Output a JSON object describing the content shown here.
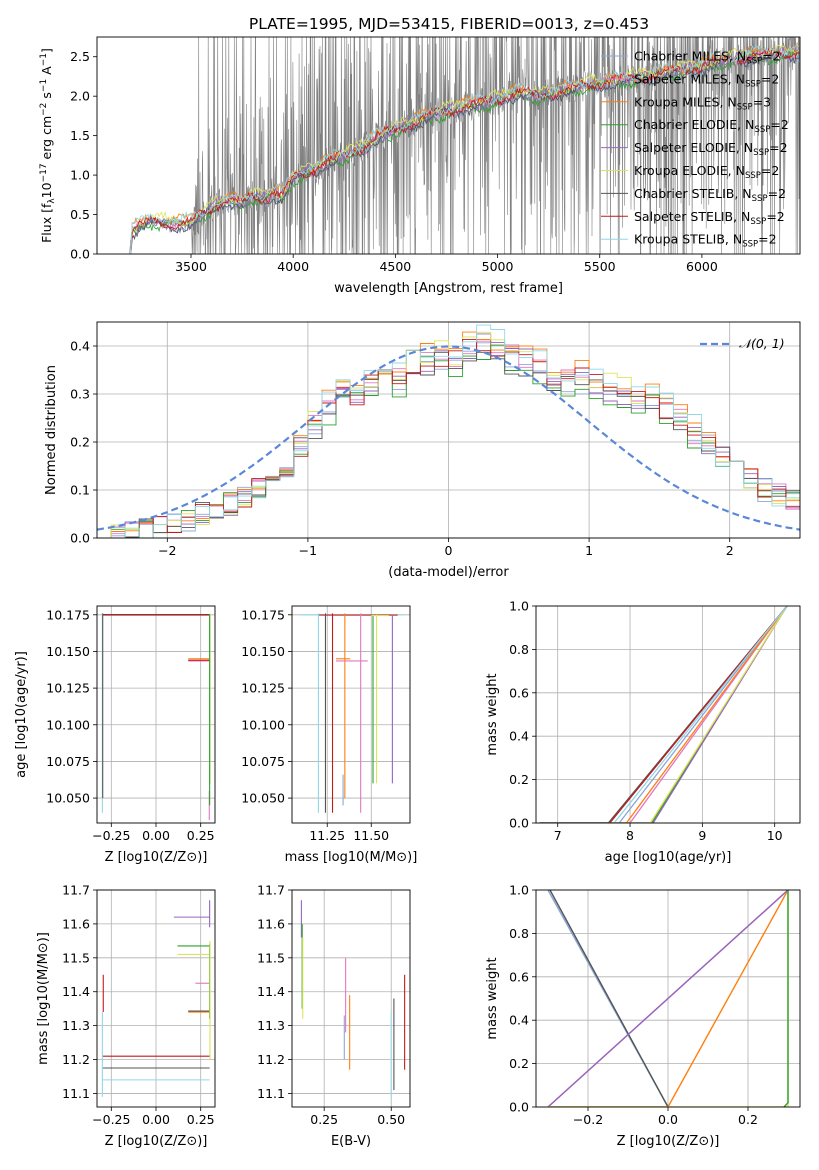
{
  "figure": {
    "title": "PLATE=1995, MJD=53415, FIBERID=0013, z=0.453"
  },
  "colors": {
    "Chabrier MILES": "#8fa5d6",
    "Salpeter MILES": "#e377c2",
    "Kroupa MILES": "#ff7f0e",
    "Chabrier ELODIE": "#2ca02c",
    "Salpeter ELODIE": "#9467bd",
    "Kroupa ELODIE": "#dde35a",
    "Chabrier STELIB": "#555555",
    "Salpeter STELIB": "#c41a1a",
    "Kroupa STELIB": "#8fd8e8",
    "data": "#808080",
    "normal": "#5b87d9"
  },
  "chart_data": [
    {
      "id": "spectrum",
      "type": "line",
      "xlabel": "wavelength [Angstrom, rest frame]",
      "ylabel": "Flux [f_λ10^-17 erg cm^-2 s^-1 A^-1]",
      "xlim": [
        3040,
        6480
      ],
      "ylim": [
        0,
        2.75
      ],
      "xticks": [
        3500,
        4000,
        4500,
        5000,
        5500,
        6000
      ],
      "yticks": [
        0.0,
        0.5,
        1.0,
        1.5,
        2.0,
        2.5
      ],
      "legend_position": "top-right",
      "legend": [
        {
          "name": "Chabrier MILES",
          "label": "Chabrier MILES, N_SSP=2"
        },
        {
          "name": "Salpeter MILES",
          "label": "Salpeter MILES, N_SSP=2"
        },
        {
          "name": "Kroupa MILES",
          "label": "Kroupa MILES, N_SSP=3"
        },
        {
          "name": "Chabrier ELODIE",
          "label": "Chabrier ELODIE, N_SSP=2"
        },
        {
          "name": "Salpeter ELODIE",
          "label": "Salpeter ELODIE, N_SSP=2"
        },
        {
          "name": "Kroupa ELODIE",
          "label": "Kroupa ELODIE, N_SSP=2"
        },
        {
          "name": "Chabrier STELIB",
          "label": "Chabrier STELIB, N_SSP=2"
        },
        {
          "name": "Salpeter STELIB",
          "label": "Salpeter STELIB, N_SSP=2"
        },
        {
          "name": "Kroupa STELIB",
          "label": "Kroupa STELIB, N_SSP=2"
        }
      ],
      "model_continuum": {
        "x": [
          3200,
          3210,
          3260,
          3300,
          3400,
          3500,
          3550,
          3600,
          3650,
          3700,
          3750,
          3800,
          3850,
          3900,
          3950,
          4000,
          4100,
          4200,
          4300,
          4400,
          4500,
          4600,
          4700,
          4800,
          4900,
          5000,
          5100,
          5200,
          5300,
          5400,
          5500,
          5600,
          5700,
          5800,
          5900,
          6000,
          6100,
          6200,
          6300,
          6400
        ],
        "y": [
          0.0,
          0.3,
          0.37,
          0.42,
          0.39,
          0.4,
          0.5,
          0.58,
          0.66,
          0.68,
          0.64,
          0.74,
          0.7,
          0.78,
          0.74,
          0.97,
          1.08,
          1.2,
          1.3,
          1.46,
          1.58,
          1.68,
          1.78,
          1.85,
          1.9,
          1.96,
          2.05,
          2.0,
          2.05,
          2.12,
          2.17,
          2.2,
          2.25,
          2.28,
          2.34,
          2.38,
          2.45,
          2.5,
          2.52,
          2.55
        ]
      },
      "data_range": {
        "x": [
          3200,
          6480
        ],
        "y": [
          0.0,
          2.75
        ]
      }
    },
    {
      "id": "residuals",
      "type": "line",
      "xlabel": "(data-model)/error",
      "ylabel": "Normed distribution",
      "xlim": [
        -2.5,
        2.5
      ],
      "ylim": [
        0,
        0.45
      ],
      "xticks": [
        -2,
        -1,
        0,
        1,
        2
      ],
      "yticks": [
        0.0,
        0.1,
        0.2,
        0.3,
        0.4
      ],
      "legend_position": "top-right",
      "legend_label": "𝒩(0, 1)",
      "bin_edges_start": -2.5,
      "bin_width": 0.1,
      "histogram_base": [
        0.0,
        0.005,
        0.01,
        0.015,
        0.02,
        0.028,
        0.035,
        0.05,
        0.06,
        0.07,
        0.085,
        0.1,
        0.12,
        0.15,
        0.19,
        0.24,
        0.27,
        0.29,
        0.3,
        0.32,
        0.34,
        0.33,
        0.36,
        0.37,
        0.38,
        0.37,
        0.39,
        0.41,
        0.4,
        0.38,
        0.37,
        0.36,
        0.34,
        0.33,
        0.33,
        0.32,
        0.31,
        0.3,
        0.29,
        0.29,
        0.27,
        0.25,
        0.22,
        0.2,
        0.17,
        0.14,
        0.12,
        0.1,
        0.09,
        0.08
      ]
    },
    {
      "id": "age-vs-Z",
      "type": "scatter",
      "xlabel": "Z [log10(Z/Z⊙)]",
      "ylabel": "age  [log10(age/yr)]",
      "xlim": [
        -0.33,
        0.33
      ],
      "ylim": [
        10.033,
        10.181
      ],
      "xticks": [
        "-0.25",
        "0.00",
        "0.25"
      ],
      "yticks": [
        "10.050",
        "10.075",
        "10.100",
        "10.125",
        "10.150",
        "10.175"
      ]
    },
    {
      "id": "age-vs-mass",
      "type": "scatter",
      "xlabel": "mass [log10(M/M⊙)]",
      "xlim": [
        11.05,
        11.72
      ],
      "ylim": [
        10.033,
        10.181
      ],
      "xticks": [
        "11.25",
        "11.50"
      ],
      "yticks": [
        "10.050",
        "10.075",
        "10.100",
        "10.125",
        "10.150",
        "10.175"
      ]
    },
    {
      "id": "cum-age",
      "type": "line",
      "xlabel": "age  [log10(age/yr)]",
      "ylabel": "mass weight",
      "xlim": [
        6.7,
        10.35
      ],
      "ylim": [
        0,
        1
      ],
      "xticks": [
        "7",
        "8",
        "9",
        "10"
      ],
      "yticks": [
        "0.0",
        "0.2",
        "0.4",
        "0.6",
        "0.8",
        "1.0"
      ]
    },
    {
      "id": "mass-vs-Z",
      "type": "scatter",
      "xlabel": "Z [log10(Z/Z⊙)]",
      "ylabel": "mass [log10(M/M⊙)]",
      "xlim": [
        -0.33,
        0.33
      ],
      "ylim": [
        11.06,
        11.7
      ],
      "xticks": [
        "-0.25",
        "0.00",
        "0.25"
      ],
      "yticks": [
        "11.1",
        "11.2",
        "11.3",
        "11.4",
        "11.5",
        "11.6",
        "11.7"
      ]
    },
    {
      "id": "mass-vs-ebv",
      "type": "scatter",
      "xlabel": "E(B-V)",
      "xlim": [
        0.13,
        0.57
      ],
      "ylim": [
        11.06,
        11.7
      ],
      "xticks": [
        "0.25",
        "0.50"
      ],
      "yticks": [
        "11.1",
        "11.2",
        "11.3",
        "11.4",
        "11.5",
        "11.6",
        "11.7"
      ]
    },
    {
      "id": "cum-Z",
      "type": "line",
      "xlabel": "Z [log10(Z/Z⊙)]",
      "ylabel": "mass weight",
      "xlim": [
        -0.33,
        0.33
      ],
      "ylim": [
        0,
        1
      ],
      "xticks": [
        "-0.2",
        "0.0",
        "0.2"
      ],
      "yticks": [
        "0.0",
        "0.2",
        "0.4",
        "0.6",
        "0.8",
        "1.0"
      ]
    }
  ]
}
